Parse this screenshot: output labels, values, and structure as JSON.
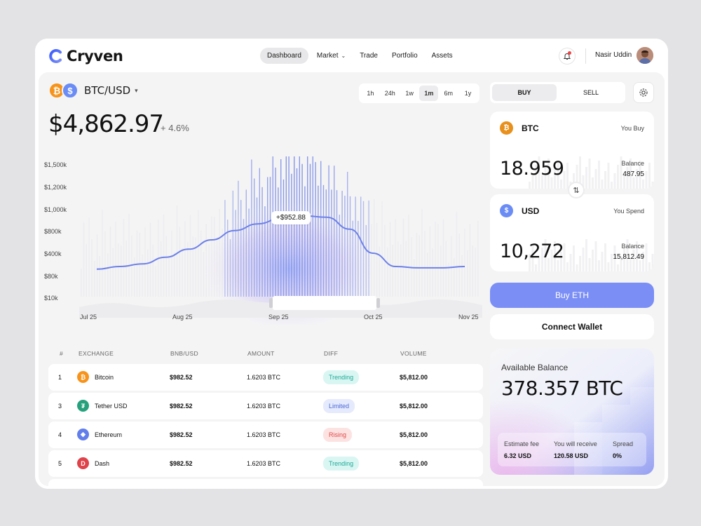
{
  "app": {
    "name": "Cryven"
  },
  "nav": {
    "items": [
      "Dashboard",
      "Market",
      "Trade",
      "Portfolio",
      "Assets"
    ],
    "active": "Dashboard"
  },
  "user": {
    "name": "Nasir Uddin"
  },
  "pair": {
    "label": "BTC/USD",
    "price": "$4,862.97",
    "change": "+ 4.6%"
  },
  "ranges": {
    "items": [
      "1h",
      "24h",
      "1w",
      "1m",
      "6m",
      "1y"
    ],
    "active": "1m"
  },
  "chart_data": {
    "type": "line",
    "y_tick_labels": [
      "$1,500k",
      "$1,200k",
      "$1,000k",
      "$800k",
      "$400k",
      "$80k",
      "$10k"
    ],
    "x_tick_labels": [
      "Jul 25",
      "Aug 25",
      "Sep 25",
      "Oct 25",
      "Nov 25"
    ],
    "tooltip": "+$952.88",
    "grid": false,
    "series": [
      {
        "values": [
          0.18,
          0.2,
          0.22,
          0.27,
          0.33,
          0.4,
          0.47,
          0.52,
          0.56,
          0.58,
          0.57,
          0.48,
          0.3,
          0.2,
          0.19,
          0.19,
          0.2
        ]
      }
    ]
  },
  "table": {
    "headers": [
      "#",
      "EXCHANGE",
      "BNB/USD",
      "AMOUNT",
      "DIFF",
      "VOLUME"
    ],
    "rows": [
      {
        "num": "1",
        "name": "Bitcoin",
        "glyph": "₿",
        "color": "#f7931a",
        "price": "$982.52",
        "amount": "1.6203 BTC",
        "diff": "Trending",
        "volume": "$5,812.00"
      },
      {
        "num": "3",
        "name": "Tether USD",
        "glyph": "₮",
        "color": "#26a17b",
        "price": "$982.52",
        "amount": "1.6203 BTC",
        "diff": "Limited",
        "volume": "$5,812.00"
      },
      {
        "num": "4",
        "name": "Ethereum",
        "glyph": "◆",
        "color": "#627eea",
        "price": "$982.52",
        "amount": "1.6203 BTC",
        "diff": "Rising",
        "volume": "$5,812.00"
      },
      {
        "num": "5",
        "name": "Dash",
        "glyph": "D",
        "color": "#e0424a",
        "price": "$982.52",
        "amount": "1.6203 BTC",
        "diff": "Trending",
        "volume": "$5,812.00"
      }
    ]
  },
  "trade": {
    "tabs": [
      "BUY",
      "SELL"
    ],
    "buy_card": {
      "symbol": "BTC",
      "role": "You Buy",
      "amount": "18.959",
      "balance_label": "Balance",
      "balance": "487.95"
    },
    "spend_card": {
      "symbol": "USD",
      "role": "You Spend",
      "amount": "10,272",
      "balance_label": "Balance",
      "balance": "15,812.49"
    },
    "buy_button": "Buy ETH",
    "wallet_button": "Connect Wallet"
  },
  "balance": {
    "label": "Available Balance",
    "value": "378.357 BTC",
    "fee_label": "Estimate fee",
    "fee": "6.32 USD",
    "receive_label": "You will receive",
    "receive": "120.58 USD",
    "spread_label": "Spread",
    "spread": "0%"
  }
}
